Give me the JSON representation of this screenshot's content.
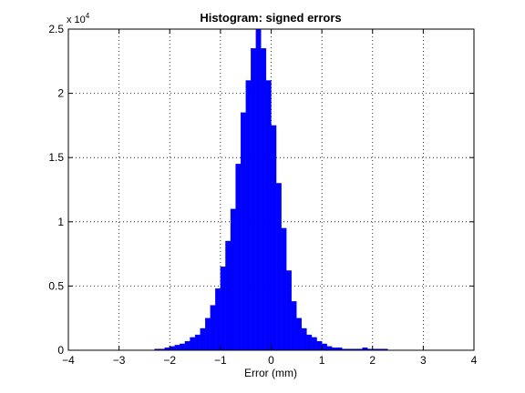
{
  "chart_data": {
    "type": "bar",
    "title": "Histogram: signed errors",
    "xlabel": "Error (mm)",
    "ylabel": "",
    "y_exponent_label": "x 10",
    "y_exponent_power": "4",
    "xlim": [
      -4,
      4
    ],
    "ylim": [
      0,
      2.5
    ],
    "y_scale_note": "counts in units of 10^4",
    "grid": true,
    "grid_style": "dotted",
    "bar_color": "#0000ff",
    "bin_width": 0.1,
    "x_ticks": [
      -4,
      -3,
      -2,
      -1,
      0,
      1,
      2,
      3,
      4
    ],
    "x_tick_labels": [
      "−4",
      "−3",
      "−2",
      "−1",
      "0",
      "1",
      "2",
      "3",
      "4"
    ],
    "y_ticks": [
      0,
      0.5,
      1,
      1.5,
      2,
      2.5
    ],
    "y_tick_labels": [
      "0",
      "0.5",
      "1",
      "1.5",
      "2",
      "2.5"
    ],
    "bin_centers": [
      -2.25,
      -2.15,
      -2.05,
      -1.95,
      -1.85,
      -1.75,
      -1.65,
      -1.55,
      -1.45,
      -1.35,
      -1.25,
      -1.15,
      -1.05,
      -0.95,
      -0.85,
      -0.75,
      -0.65,
      -0.55,
      -0.45,
      -0.35,
      -0.25,
      -0.15,
      -0.05,
      0.05,
      0.15,
      0.25,
      0.35,
      0.45,
      0.55,
      0.65,
      0.75,
      0.85,
      0.95,
      1.05,
      1.15,
      1.25,
      1.35,
      1.45,
      1.55,
      1.65,
      1.75,
      1.85,
      1.95,
      2.05,
      2.15,
      2.25
    ],
    "values": [
      0.01,
      0.01,
      0.02,
      0.03,
      0.04,
      0.05,
      0.07,
      0.1,
      0.12,
      0.17,
      0.25,
      0.35,
      0.48,
      0.65,
      0.85,
      1.1,
      1.45,
      1.85,
      2.1,
      2.35,
      2.5,
      2.35,
      2.1,
      1.75,
      1.3,
      0.95,
      0.62,
      0.38,
      0.25,
      0.17,
      0.12,
      0.1,
      0.07,
      0.05,
      0.03,
      0.02,
      0.02,
      0.01,
      0.01,
      0.01,
      0.01,
      0.02,
      0.01,
      0.01,
      0.01,
      0.01
    ]
  }
}
